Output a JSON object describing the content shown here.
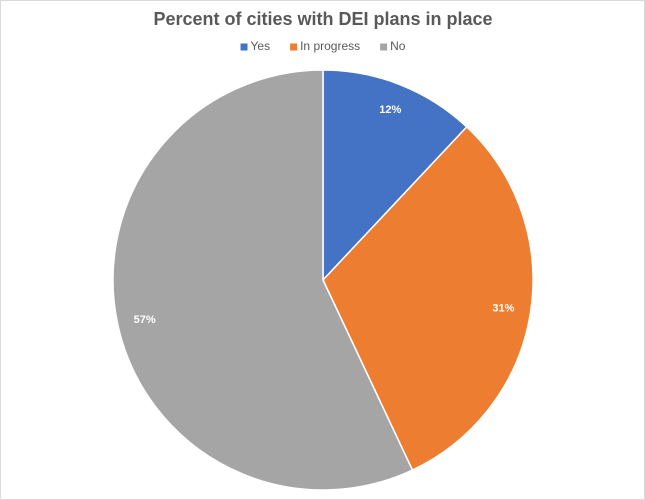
{
  "chart_data": {
    "type": "pie",
    "title": "Percent of cities with DEI plans in place",
    "categories": [
      "Yes",
      "In progress",
      "No"
    ],
    "values": [
      12,
      31,
      57
    ],
    "value_labels": [
      "12%",
      "31%",
      "57%"
    ],
    "colors": [
      "#4472c4",
      "#ed7d31",
      "#a5a5a5"
    ],
    "legend": "top"
  }
}
